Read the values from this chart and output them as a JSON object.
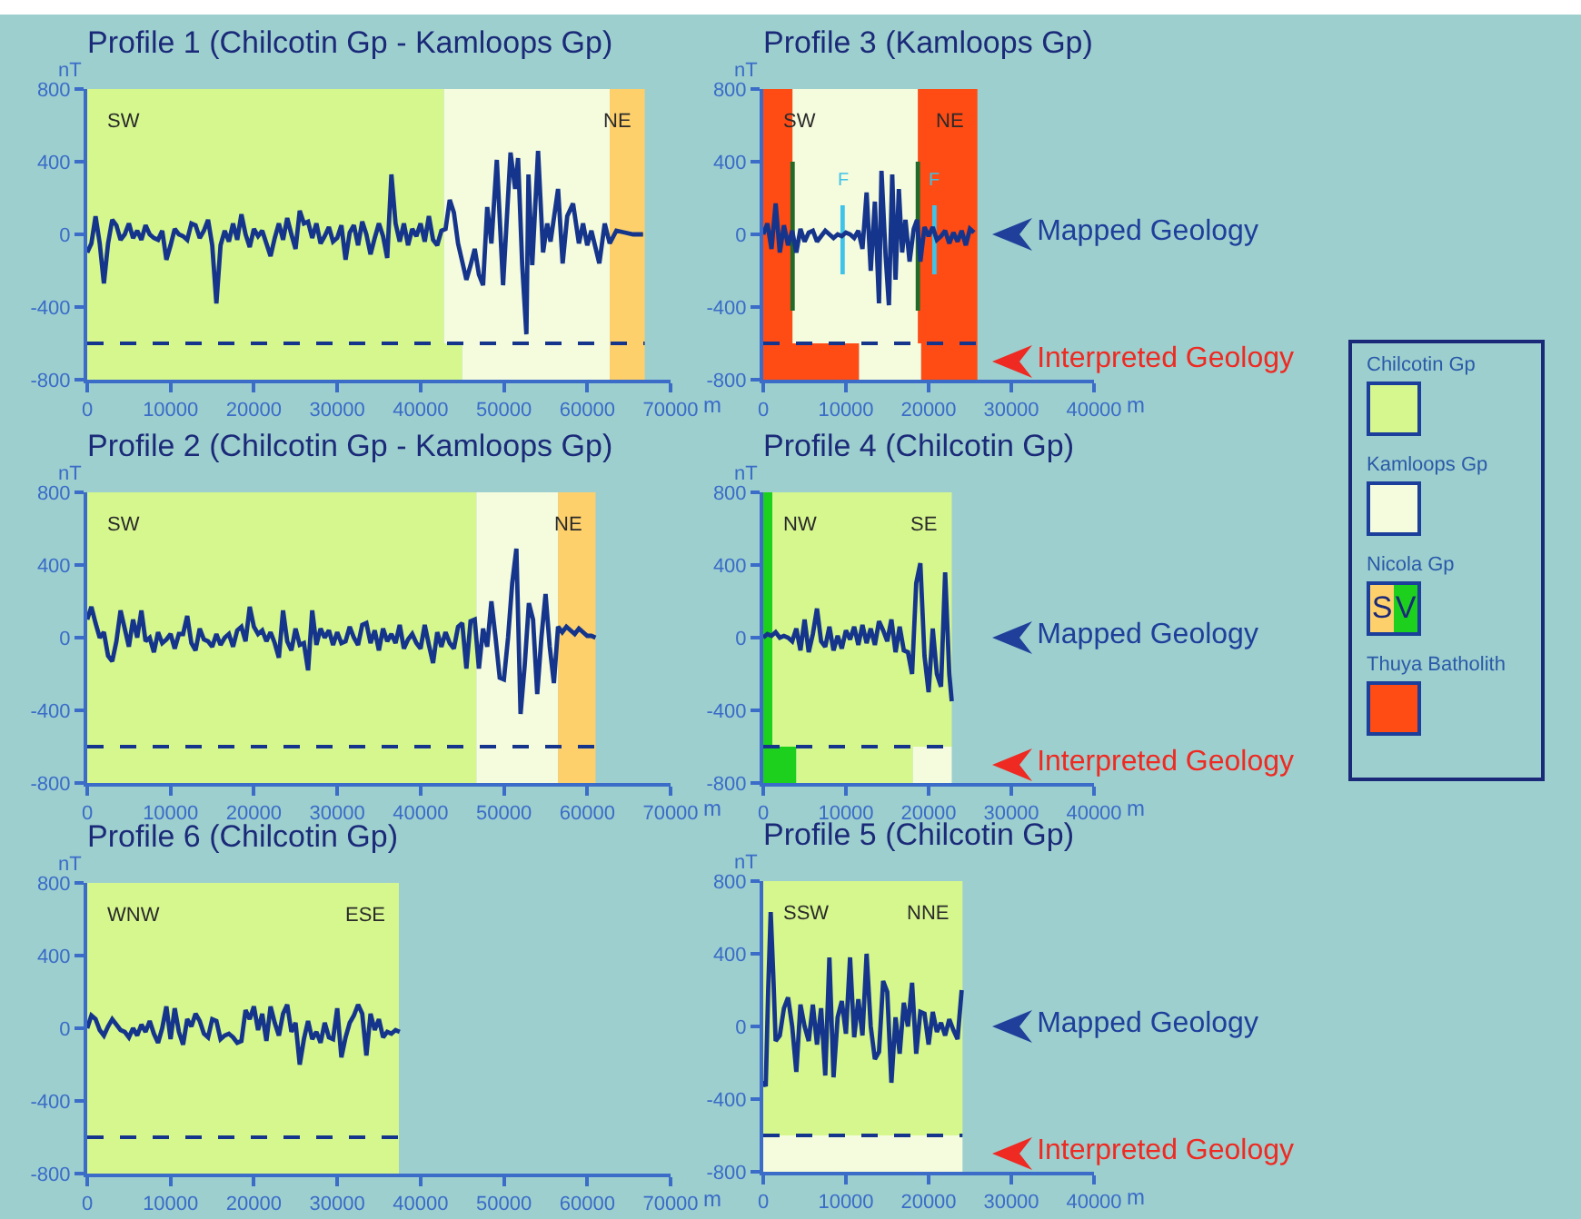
{
  "chart_data": [
    {
      "type": "line",
      "title": "Profile 1 (Chilcotin Gp - Kamloops Gp)",
      "xlabel": "m",
      "ylabel": "nT",
      "xlim": [
        0,
        70000
      ],
      "xticks": [
        0,
        10000,
        20000,
        30000,
        40000,
        50000,
        60000,
        70000
      ],
      "ylim": [
        -800,
        800
      ],
      "yticks": [
        -800,
        -400,
        0,
        400,
        800
      ],
      "bands": [
        {
          "axis": "x",
          "from": 0,
          "to": 42800,
          "color": "#d5f78e"
        },
        {
          "axis": "x",
          "from": 42800,
          "to": 62700,
          "color": "#f5fbdd"
        },
        {
          "axis": "x",
          "from": 62700,
          "to": 66900,
          "color": "#fdd06c"
        },
        {
          "axis": "x",
          "from": 0,
          "to": 45000,
          "color": "#d5f78e"
        },
        {
          "axis": "x",
          "from": 45000,
          "to": 62700,
          "color": "#f5fbdd"
        },
        {
          "axis": "x",
          "from": 62700,
          "to": 66900,
          "color": "#fdd06c"
        }
      ],
      "ref_lines": [
        {
          "axis": "y",
          "value": -600,
          "color": "#15358c",
          "line_style": "dashed"
        }
      ],
      "annotations": [
        "SW",
        "NE"
      ],
      "series": [
        {
          "color": "#15358c",
          "x": [
            0,
            500,
            1000,
            1500,
            2000,
            2500,
            3000,
            3500,
            4000,
            4500,
            5000,
            5500,
            6000,
            6500,
            7000,
            7500,
            8000,
            8500,
            9000,
            9500,
            10000,
            10500,
            11000,
            11500,
            12000,
            12500,
            13000,
            13500,
            14000,
            14500,
            15000,
            15500,
            16000,
            16500,
            17000,
            17500,
            18000,
            18500,
            19000,
            19500,
            20000,
            20500,
            21000,
            21500,
            22000,
            22500,
            23000,
            23500,
            24000,
            24500,
            25000,
            25500,
            26000,
            26500,
            27000,
            27500,
            28000,
            28500,
            29000,
            29500,
            30000,
            30500,
            31000,
            31500,
            32000,
            32500,
            33000,
            33500,
            34000,
            34500,
            35000,
            35500,
            36000,
            36500,
            37000,
            37500,
            38000,
            38500,
            39000,
            39500,
            40000,
            40500,
            41000,
            41500,
            42000,
            42500,
            43000,
            43500,
            44000,
            44500,
            45000,
            45500,
            46000,
            46500,
            47000,
            47500,
            48000,
            48500,
            49150,
            49900,
            50800,
            51350,
            51700,
            52200,
            52700,
            52950,
            53400,
            54100,
            54700,
            55200,
            55600,
            56500,
            57050,
            57600,
            58300,
            59000,
            59500,
            60000,
            60500,
            61450,
            62100,
            62700,
            63500,
            64500,
            65500,
            66700
          ],
          "values": [
            -100,
            -50,
            100,
            -50,
            -270,
            -50,
            80,
            50,
            -30,
            0,
            60,
            -20,
            20,
            -30,
            50,
            0,
            -20,
            -30,
            20,
            -140,
            -60,
            30,
            0,
            -10,
            -30,
            60,
            50,
            -20,
            20,
            80,
            -60,
            -380,
            -60,
            20,
            -40,
            60,
            -30,
            110,
            0,
            -70,
            30,
            -10,
            20,
            -50,
            -120,
            -20,
            60,
            -30,
            90,
            0,
            -80,
            130,
            60,
            70,
            -20,
            60,
            -50,
            -10,
            40,
            -40,
            -20,
            50,
            -140,
            10,
            50,
            -60,
            70,
            0,
            -110,
            -20,
            60,
            -10,
            -130,
            330,
            60,
            -40,
            60,
            -60,
            30,
            -10,
            60,
            -40,
            100,
            -30,
            -60,
            20,
            30,
            190,
            120,
            -50,
            -150,
            -250,
            -170,
            -80,
            -220,
            -280,
            150,
            -50,
            410,
            -280,
            450,
            250,
            420,
            -170,
            -550,
            330,
            -170,
            460,
            -100,
            60,
            -40,
            250,
            -160,
            100,
            170,
            -50,
            60,
            -60,
            20,
            -160,
            60,
            -50,
            20,
            10,
            0,
            0
          ]
        }
      ]
    },
    {
      "type": "line",
      "title": "Profile 3 (Kamloops Gp)",
      "xlabel": "m",
      "ylabel": "nT",
      "xlim": [
        0,
        40000
      ],
      "xticks": [
        0,
        10000,
        20000,
        30000,
        40000
      ],
      "ylim": [
        -800,
        800
      ],
      "yticks": [
        -800,
        -400,
        0,
        400,
        800
      ],
      "bands": [
        {
          "axis": "x",
          "from": 0,
          "to": 3550,
          "color": "#ff4b14"
        },
        {
          "axis": "x",
          "from": 3550,
          "to": 18700,
          "color": "#f5fbdd"
        },
        {
          "axis": "x",
          "from": 18700,
          "to": 25900,
          "color": "#ff4b14"
        },
        {
          "axis": "x",
          "from": 0,
          "to": 11600,
          "color": "#ff4b14"
        },
        {
          "axis": "x",
          "from": 11600,
          "to": 19100,
          "color": "#f5fbdd"
        },
        {
          "axis": "x",
          "from": 19100,
          "to": 25900,
          "color": "#ff4b14"
        }
      ],
      "ref_lines": [
        {
          "axis": "y",
          "value": -600,
          "color": "#15358c",
          "line_style": "dashed"
        }
      ],
      "annotations": [
        "SW",
        "NE",
        "F",
        "F",
        "Mapped Geology",
        "Interpreted Geology"
      ],
      "series": [
        {
          "color": "#1f6b2a",
          "x": [
            3550,
            3550
          ],
          "values": [
            -420,
            400
          ]
        },
        {
          "color": "#1f6b2a",
          "x": [
            18700,
            18700
          ],
          "values": [
            -420,
            400
          ]
        },
        {
          "color": "#3ec3ea",
          "x": [
            9600,
            9600
          ],
          "values": [
            -220,
            160
          ]
        },
        {
          "color": "#3ec3ea",
          "x": [
            20700,
            20700
          ],
          "values": [
            -220,
            160
          ]
        },
        {
          "color": "#15358c",
          "x": [
            0,
            500,
            1000,
            1500,
            2000,
            2500,
            3000,
            3500,
            4000,
            4500,
            5000,
            5500,
            6000,
            6500,
            7000,
            7500,
            8000,
            8500,
            9000,
            9500,
            10000,
            10500,
            11000,
            11500,
            12000,
            12500,
            13000,
            13500,
            14000,
            14300,
            14800,
            15200,
            15600,
            16000,
            16400,
            16800,
            17200,
            17700,
            18200,
            18600,
            19000,
            19500,
            20000,
            20500,
            21000,
            21500,
            22000,
            22500,
            23000,
            23500,
            24000,
            24500,
            25000,
            25500
          ],
          "values": [
            0,
            60,
            -80,
            170,
            -100,
            50,
            -60,
            20,
            -100,
            30,
            -40,
            10,
            20,
            -40,
            -10,
            20,
            0,
            -20,
            0,
            -10,
            10,
            0,
            -20,
            20,
            -80,
            230,
            -200,
            180,
            -380,
            350,
            -120,
            -390,
            330,
            -250,
            250,
            -100,
            80,
            -150,
            30,
            80,
            -150,
            40,
            -10,
            40,
            -30,
            -10,
            20,
            -50,
            10,
            -40,
            20,
            -60,
            30,
            10
          ]
        }
      ]
    },
    {
      "type": "line",
      "title": "Profile 2 (Chilcotin Gp - Kamloops Gp)",
      "xlabel": "m",
      "ylabel": "nT",
      "xlim": [
        0,
        70000
      ],
      "xticks": [
        0,
        10000,
        20000,
        30000,
        40000,
        50000,
        60000,
        70000
      ],
      "ylim": [
        -800,
        800
      ],
      "yticks": [
        -800,
        -400,
        0,
        400,
        800
      ],
      "bands": [
        {
          "axis": "x",
          "from": 0,
          "to": 46700,
          "color": "#d5f78e"
        },
        {
          "axis": "x",
          "from": 46700,
          "to": 56500,
          "color": "#f5fbdd"
        },
        {
          "axis": "x",
          "from": 56500,
          "to": 61000,
          "color": "#fdd06c"
        },
        {
          "axis": "x",
          "from": 0,
          "to": 46700,
          "color": "#d5f78e"
        },
        {
          "axis": "x",
          "from": 46700,
          "to": 56500,
          "color": "#f5fbdd"
        },
        {
          "axis": "x",
          "from": 56500,
          "to": 61000,
          "color": "#fdd06c"
        }
      ],
      "ref_lines": [
        {
          "axis": "y",
          "value": -600,
          "color": "#15358c",
          "line_style": "dashed"
        }
      ],
      "annotations": [
        "SW",
        "NE"
      ],
      "series": [
        {
          "color": "#15358c",
          "x": [
            0,
            500,
            1000,
            1500,
            2000,
            2500,
            3000,
            3500,
            4000,
            4500,
            5000,
            5500,
            6000,
            6500,
            7000,
            7500,
            8000,
            8500,
            9000,
            9500,
            10000,
            10500,
            11000,
            11500,
            12000,
            12500,
            13000,
            13500,
            14000,
            14500,
            15000,
            15500,
            16000,
            16500,
            17000,
            17500,
            18000,
            18500,
            19000,
            19500,
            20000,
            20500,
            21000,
            21500,
            22000,
            22500,
            23000,
            23500,
            24000,
            24500,
            25000,
            25500,
            26000,
            26500,
            27000,
            27500,
            28000,
            28500,
            29000,
            29500,
            30000,
            30500,
            31000,
            31500,
            32000,
            32500,
            33000,
            33500,
            34000,
            34500,
            35000,
            35500,
            36000,
            36500,
            37000,
            37500,
            38000,
            38500,
            39000,
            39500,
            40000,
            40500,
            41000,
            41500,
            42000,
            42500,
            43000,
            43500,
            44000,
            44500,
            45000,
            45500,
            46000,
            46500,
            47000,
            47500,
            48000,
            48500,
            49000,
            49500,
            50000,
            50500,
            51000,
            51500,
            52000,
            52500,
            53000,
            53500,
            54000,
            54500,
            55000,
            55500,
            56000,
            56500,
            57000,
            57500,
            58000,
            58500,
            59000,
            59500,
            60000,
            60500,
            61000
          ],
          "values": [
            100,
            170,
            80,
            0,
            30,
            -100,
            -130,
            -20,
            150,
            50,
            -50,
            100,
            0,
            150,
            -20,
            0,
            -80,
            30,
            -30,
            -10,
            20,
            -60,
            20,
            20,
            120,
            -30,
            -70,
            50,
            -10,
            -20,
            -50,
            20,
            -40,
            0,
            20,
            -50,
            40,
            60,
            -20,
            170,
            60,
            20,
            40,
            -20,
            30,
            -30,
            -110,
            150,
            -20,
            -70,
            50,
            -40,
            -30,
            -180,
            150,
            -40,
            50,
            0,
            40,
            -40,
            30,
            -30,
            -20,
            60,
            0,
            -40,
            70,
            80,
            -30,
            40,
            -70,
            50,
            -20,
            20,
            -30,
            70,
            -60,
            -10,
            20,
            -30,
            -60,
            70,
            -40,
            -140,
            30,
            -50,
            30,
            -30,
            -60,
            60,
            80,
            -170,
            90,
            100,
            -170,
            50,
            -50,
            200,
            0,
            -220,
            -230,
            0,
            300,
            490,
            -420,
            -150,
            190,
            100,
            -310,
            0,
            240,
            -50,
            -250,
            60,
            30,
            60,
            40,
            20,
            50,
            30,
            10,
            10,
            0
          ]
        }
      ]
    },
    {
      "type": "line",
      "title": "Profile 4 (Chilcotin Gp)",
      "xlabel": "m",
      "ylabel": "nT",
      "xlim": [
        0,
        40000
      ],
      "xticks": [
        0,
        10000,
        20000,
        30000,
        40000
      ],
      "ylim": [
        -800,
        800
      ],
      "yticks": [
        -800,
        -400,
        0,
        400,
        800
      ],
      "bands": [
        {
          "axis": "x",
          "from": 0,
          "to": 1100,
          "color": "#1ed01e"
        },
        {
          "axis": "x",
          "from": 1100,
          "to": 22800,
          "color": "#d5f78e"
        },
        {
          "axis": "x",
          "from": 0,
          "to": 4000,
          "color": "#1ed01e"
        },
        {
          "axis": "x",
          "from": 4000,
          "to": 18100,
          "color": "#d5f78e"
        },
        {
          "axis": "x",
          "from": 18100,
          "to": 22800,
          "color": "#f5fbdd"
        }
      ],
      "ref_lines": [
        {
          "axis": "y",
          "value": -600,
          "color": "#15358c",
          "line_style": "dashed"
        }
      ],
      "annotations": [
        "NW",
        "SE",
        "Mapped Geology",
        "Interpreted Geology"
      ],
      "series": [
        {
          "color": "#15358c",
          "x": [
            0,
            500,
            1000,
            1500,
            2000,
            2500,
            3000,
            3500,
            4000,
            4500,
            5000,
            5500,
            6000,
            6500,
            7000,
            7500,
            8000,
            8500,
            9000,
            9500,
            10000,
            10500,
            11000,
            11500,
            12000,
            12500,
            13000,
            13500,
            14000,
            14500,
            15000,
            15500,
            16000,
            16500,
            17000,
            17500,
            18000,
            18500,
            19000,
            19500,
            20000,
            20500,
            21000,
            21500,
            22000,
            22500,
            22800
          ],
          "values": [
            0,
            20,
            10,
            30,
            0,
            10,
            0,
            -20,
            50,
            -70,
            100,
            -80,
            20,
            160,
            -20,
            -50,
            60,
            -70,
            10,
            -60,
            40,
            -10,
            60,
            -40,
            70,
            -30,
            50,
            -40,
            90,
            40,
            -20,
            100,
            -80,
            60,
            -70,
            -80,
            -200,
            300,
            410,
            -100,
            -300,
            50,
            -200,
            -270,
            360,
            -200,
            -350
          ]
        }
      ]
    },
    {
      "type": "line",
      "title": "Profile 6 (Chilcotin Gp)",
      "xlabel": "m",
      "ylabel": "nT",
      "xlim": [
        0,
        70000
      ],
      "xticks": [
        0,
        10000,
        20000,
        30000,
        40000,
        50000,
        60000,
        70000
      ],
      "ylim": [
        -800,
        800
      ],
      "yticks": [
        -800,
        -400,
        0,
        400,
        800
      ],
      "bands": [
        {
          "axis": "x",
          "from": 0,
          "to": 37400,
          "color": "#d5f78e"
        },
        {
          "axis": "x",
          "from": 0,
          "to": 37400,
          "color": "#d5f78e"
        }
      ],
      "ref_lines": [
        {
          "axis": "y",
          "value": -600,
          "color": "#15358c",
          "line_style": "dashed"
        }
      ],
      "annotations": [
        "WNW",
        "ESE"
      ],
      "series": [
        {
          "color": "#15358c",
          "x": [
            0,
            500,
            1000,
            1500,
            2000,
            2500,
            3000,
            3500,
            4000,
            4500,
            5000,
            5500,
            6000,
            6500,
            7000,
            7500,
            8000,
            8500,
            9000,
            9500,
            10000,
            10500,
            11000,
            11500,
            12000,
            12500,
            13000,
            13500,
            14000,
            14500,
            15000,
            15500,
            16000,
            16500,
            17000,
            17500,
            18000,
            18500,
            19000,
            19500,
            20000,
            20500,
            21000,
            21500,
            22000,
            22500,
            23000,
            23500,
            24000,
            24500,
            25000,
            25500,
            26000,
            26500,
            27000,
            27500,
            28000,
            28500,
            29000,
            29500,
            30000,
            30500,
            31000,
            31500,
            32000,
            32500,
            33000,
            33500,
            34000,
            34500,
            35000,
            35500,
            36000,
            36500,
            37000,
            37500
          ],
          "values": [
            0,
            70,
            50,
            -10,
            -40,
            10,
            50,
            20,
            -10,
            -20,
            -50,
            0,
            -40,
            20,
            -20,
            40,
            -30,
            -80,
            0,
            120,
            -60,
            110,
            -20,
            -90,
            50,
            10,
            80,
            40,
            -30,
            -50,
            50,
            40,
            -60,
            -40,
            -30,
            -50,
            -80,
            -70,
            100,
            50,
            120,
            -10,
            80,
            -70,
            120,
            30,
            -40,
            80,
            130,
            -20,
            30,
            -200,
            -60,
            40,
            -60,
            -20,
            -80,
            30,
            -50,
            -60,
            110,
            -160,
            -50,
            30,
            70,
            130,
            80,
            -150,
            80,
            -10,
            50,
            -50,
            -20,
            -30,
            -10,
            -20
          ]
        }
      ]
    },
    {
      "type": "line",
      "title": "Profile 5 (Chilcotin Gp)",
      "xlabel": "m",
      "ylabel": "nT",
      "xlim": [
        0,
        40000
      ],
      "xticks": [
        0,
        10000,
        20000,
        30000,
        40000
      ],
      "ylim": [
        -800,
        800
      ],
      "yticks": [
        -800,
        -400,
        0,
        400,
        800
      ],
      "bands": [
        {
          "axis": "x",
          "from": 0,
          "to": 24100,
          "color": "#d5f78e"
        },
        {
          "axis": "x",
          "from": 0,
          "to": 24100,
          "color": "#f5fbdd"
        }
      ],
      "ref_lines": [
        {
          "axis": "y",
          "value": -600,
          "color": "#15358c",
          "line_style": "dashed"
        }
      ],
      "annotations": [
        "SSW",
        "NNE",
        "Mapped Geology",
        "Interpreted Geology"
      ],
      "series": [
        {
          "color": "#15358c",
          "x": [
            0,
            300,
            600,
            900,
            1200,
            1500,
            2000,
            2500,
            3000,
            3500,
            4000,
            4500,
            5000,
            5500,
            6000,
            6500,
            7000,
            7500,
            8000,
            8500,
            9000,
            9500,
            10000,
            10500,
            11000,
            11500,
            12000,
            12500,
            13000,
            13500,
            14000,
            14500,
            15000,
            15500,
            16000,
            16500,
            17000,
            17500,
            18000,
            18500,
            19000,
            19500,
            20000,
            20500,
            21000,
            21500,
            22000,
            22500,
            23000,
            23500,
            24000
          ],
          "values": [
            -300,
            -330,
            200,
            630,
            300,
            -80,
            -50,
            100,
            160,
            0,
            -250,
            120,
            0,
            -80,
            120,
            -100,
            100,
            -270,
            380,
            -280,
            50,
            140,
            -40,
            380,
            -60,
            150,
            -50,
            400,
            0,
            -180,
            -140,
            250,
            190,
            -310,
            50,
            -150,
            130,
            0,
            240,
            -150,
            80,
            70,
            -100,
            80,
            -30,
            20,
            -50,
            40,
            -20,
            -70,
            200
          ]
        }
      ]
    },
    {
      "type": "other",
      "categories": [
        "Chilcotin Gp",
        "Kamloops Gp",
        "S",
        "V",
        "Thuya Batholith"
      ],
      "colors": [
        "#d5f78e",
        "#f5fbdd",
        "#fdd06c",
        "#1ed01e",
        "#ff4b14"
      ],
      "annotations": [
        "Nicola Gp"
      ]
    }
  ]
}
